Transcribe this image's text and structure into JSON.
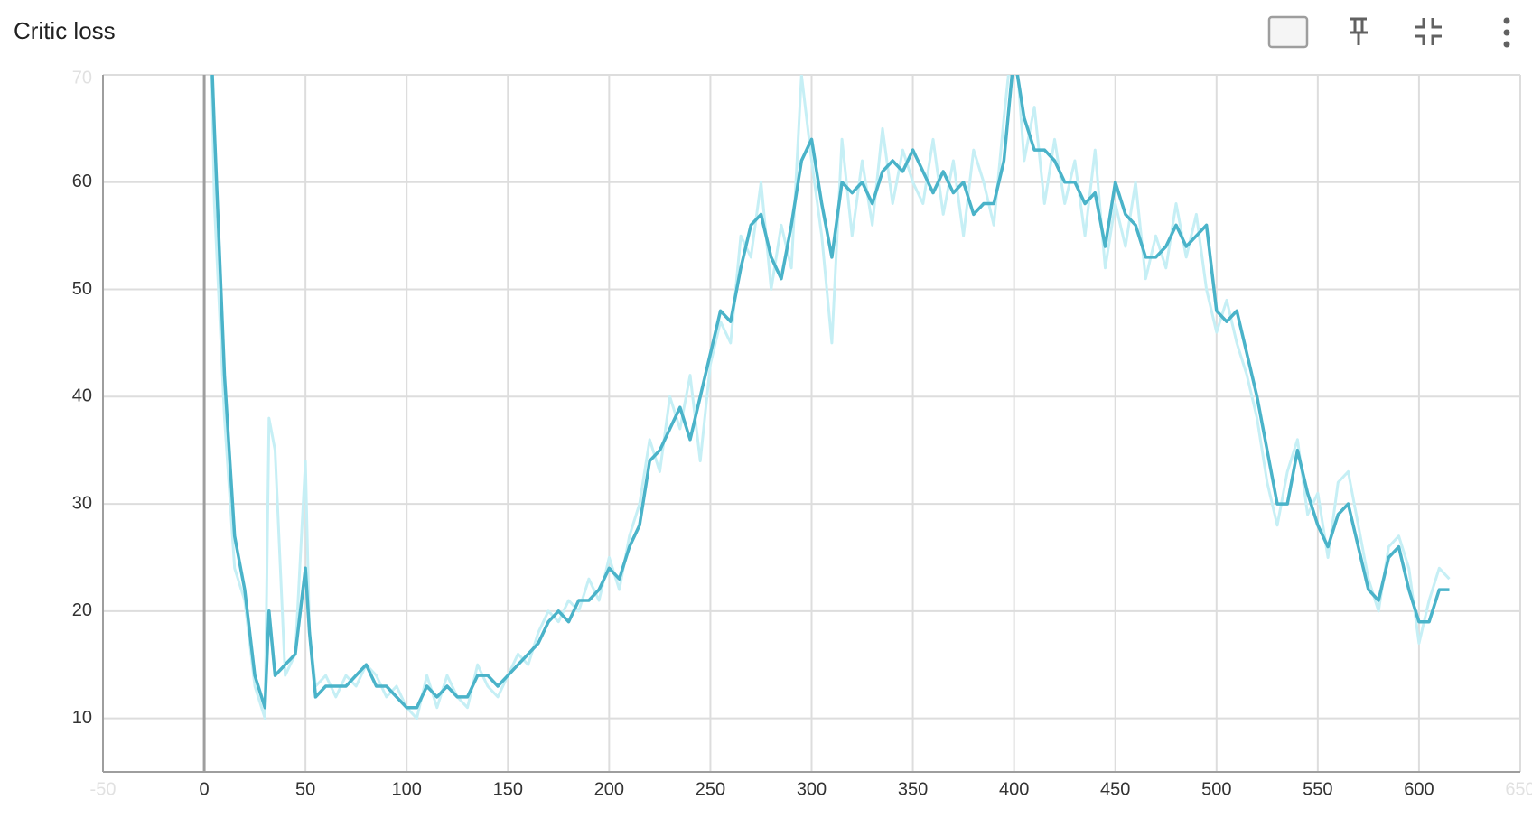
{
  "chart_data": {
    "type": "line",
    "title": "Critic loss",
    "x": [
      2,
      5,
      10,
      15,
      20,
      25,
      30,
      32,
      35,
      40,
      45,
      50,
      52,
      55,
      60,
      65,
      70,
      75,
      80,
      85,
      90,
      95,
      100,
      105,
      110,
      115,
      120,
      125,
      130,
      135,
      140,
      145,
      150,
      155,
      160,
      165,
      170,
      175,
      180,
      185,
      190,
      195,
      200,
      205,
      210,
      215,
      220,
      225,
      230,
      235,
      240,
      245,
      250,
      255,
      260,
      265,
      270,
      275,
      280,
      285,
      290,
      295,
      300,
      305,
      310,
      315,
      320,
      325,
      330,
      335,
      340,
      345,
      350,
      355,
      360,
      365,
      370,
      375,
      380,
      385,
      390,
      395,
      400,
      405,
      410,
      415,
      420,
      425,
      430,
      435,
      440,
      445,
      450,
      455,
      460,
      465,
      470,
      475,
      480,
      485,
      490,
      495,
      500,
      505,
      510,
      515,
      520,
      525,
      530,
      535,
      540,
      545,
      550,
      555,
      560,
      565,
      570,
      575,
      580,
      585,
      590,
      595,
      600,
      605,
      610,
      615
    ],
    "series": [
      {
        "color": "#c6eff5",
        "values": [
          85,
          58,
          38,
          24,
          21,
          13,
          10,
          38,
          35,
          14,
          16,
          34,
          18,
          13,
          14,
          12,
          14,
          13,
          15,
          14,
          12,
          13,
          11,
          10,
          14,
          11,
          14,
          12,
          11,
          15,
          13,
          12,
          14,
          16,
          15,
          18,
          20,
          19,
          21,
          20,
          23,
          21,
          25,
          22,
          27,
          30,
          36,
          33,
          40,
          37,
          42,
          34,
          43,
          47,
          45,
          55,
          53,
          60,
          50,
          56,
          52,
          70,
          62,
          55,
          45,
          64,
          55,
          62,
          56,
          65,
          58,
          63,
          60,
          58,
          64,
          57,
          62,
          55,
          63,
          60,
          56,
          66,
          75,
          62,
          67,
          58,
          64,
          58,
          62,
          55,
          63,
          52,
          58,
          54,
          60,
          51,
          55,
          52,
          58,
          53,
          57,
          50,
          46,
          49,
          45,
          42,
          38,
          32,
          28,
          33,
          36,
          29,
          31,
          25,
          32,
          33,
          28,
          23,
          20,
          26,
          27,
          24,
          17,
          21,
          24,
          23
        ]
      },
      {
        "color": "#4ab3c9",
        "values": [
          80,
          65,
          42,
          27,
          22,
          14,
          11,
          20,
          14,
          15,
          16,
          24,
          18,
          12,
          13,
          13,
          13,
          14,
          15,
          13,
          13,
          12,
          11,
          11,
          13,
          12,
          13,
          12,
          12,
          14,
          14,
          13,
          14,
          15,
          16,
          17,
          19,
          20,
          19,
          21,
          21,
          22,
          24,
          23,
          26,
          28,
          34,
          35,
          37,
          39,
          36,
          40,
          44,
          48,
          47,
          52,
          56,
          57,
          53,
          51,
          56,
          62,
          64,
          58,
          53,
          60,
          59,
          60,
          58,
          61,
          62,
          61,
          63,
          61,
          59,
          61,
          59,
          60,
          57,
          58,
          58,
          62,
          72,
          66,
          63,
          63,
          62,
          60,
          60,
          58,
          59,
          54,
          60,
          57,
          56,
          53,
          53,
          54,
          56,
          54,
          55,
          56,
          48,
          47,
          48,
          44,
          40,
          35,
          30,
          30,
          35,
          31,
          28,
          26,
          29,
          30,
          26,
          22,
          21,
          25,
          26,
          22,
          19,
          19,
          22,
          22
        ]
      }
    ],
    "xlim": [
      -50,
      650
    ],
    "ylim": [
      5,
      70
    ],
    "xticks": [
      -50,
      0,
      50,
      100,
      150,
      200,
      250,
      300,
      350,
      400,
      450,
      500,
      550,
      600,
      650
    ],
    "yticks": [
      10,
      20,
      30,
      40,
      50,
      60,
      70
    ],
    "grid": true
  }
}
